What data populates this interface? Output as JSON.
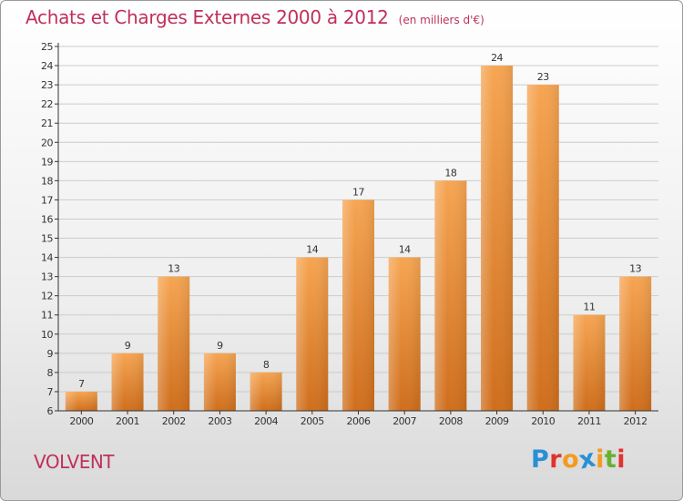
{
  "title": {
    "main": "Achats et Charges Externes 2000 à 2012",
    "unit": "(en milliers d'€)"
  },
  "commune": "VOLVENT",
  "logo": {
    "text": "Proxiti",
    "colors": [
      "#2a8fd6",
      "#e2322d",
      "#f39a1f",
      "#2a8fd6",
      "#f39a1f",
      "#69b02f",
      "#e2322d"
    ]
  },
  "colors": {
    "title": "#c0305a",
    "bar_top": "#f6a552",
    "bar_bottom": "#cf6e1c",
    "grid": "#cccccc",
    "axis": "#333333"
  },
  "chart_data": {
    "type": "bar",
    "categories": [
      "2000",
      "2001",
      "2002",
      "2003",
      "2004",
      "2005",
      "2006",
      "2007",
      "2008",
      "2009",
      "2010",
      "2011",
      "2012"
    ],
    "values": [
      7,
      9,
      13,
      9,
      8,
      14,
      17,
      14,
      18,
      24,
      23,
      11,
      13
    ],
    "ylim": [
      6,
      25
    ],
    "yticks": [
      6,
      7,
      8,
      9,
      10,
      11,
      12,
      13,
      14,
      15,
      16,
      17,
      18,
      19,
      20,
      21,
      22,
      23,
      24,
      25
    ],
    "grid": true,
    "xlabel": "",
    "ylabel": ""
  }
}
